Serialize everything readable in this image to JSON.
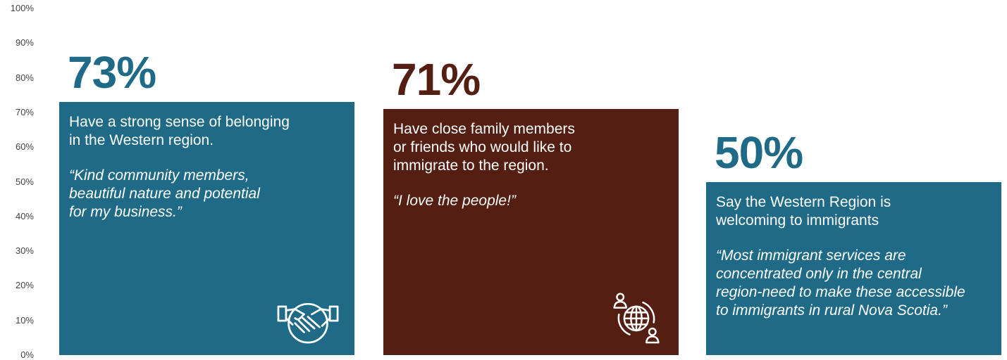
{
  "chart_data": {
    "type": "bar",
    "ylim": [
      0,
      100
    ],
    "y_ticks": [
      "0%",
      "10%",
      "20%",
      "30%",
      "40%",
      "50%",
      "60%",
      "70%",
      "80%",
      "90%",
      "100%"
    ],
    "y_tick_values": [
      0,
      10,
      20,
      30,
      40,
      50,
      60,
      70,
      80,
      90,
      100
    ],
    "grid": false,
    "values": [
      73,
      71,
      50
    ],
    "bars": [
      {
        "value": 73,
        "value_label": "73%",
        "description_lines": [
          "Have a strong sense of belonging",
          "in the Western region."
        ],
        "quote_lines": [
          "“Kind community members,",
          "beautiful nature and potential",
          "for my business.”"
        ],
        "color": "#1F6B87",
        "label_color": "#1F6B87",
        "icon": "handshake-icon"
      },
      {
        "value": 71,
        "value_label": "71%",
        "description_lines": [
          "Have close family members",
          "or friends who would like to",
          "immigrate to the region."
        ],
        "quote_lines": [
          "“I love the people!”"
        ],
        "color": "#551E12",
        "label_color": "#551E12",
        "icon": "global-migration-icon"
      },
      {
        "value": 50,
        "value_label": "50%",
        "description_lines": [
          "Say the Western Region is",
          "welcoming to immigrants"
        ],
        "quote_lines": [
          "“Most immigrant services are",
          "concentrated only in the central",
          "region-need to make these accessible",
          "to immigrants in rural Nova Scotia.”"
        ],
        "color": "#1F6B87",
        "label_color": "#1F6B87",
        "icon": null
      }
    ]
  }
}
